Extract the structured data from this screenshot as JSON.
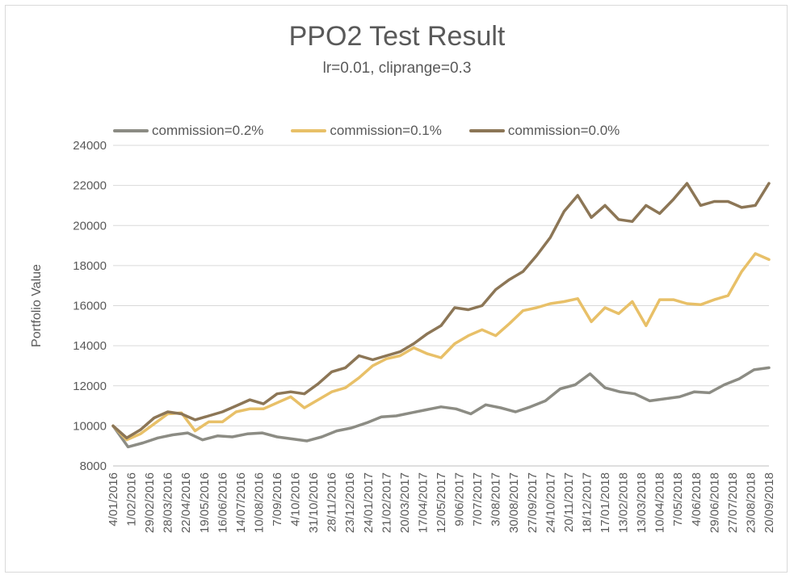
{
  "chart_data": {
    "type": "line",
    "title": "PPO2 Test Result",
    "subtitle": "lr=0.01, cliprange=0.3",
    "ylabel": "Portfolio Value",
    "xlabel": "",
    "ylim": [
      8000,
      24000
    ],
    "yticks": [
      "8000",
      "10000",
      "12000",
      "14000",
      "16000",
      "18000",
      "20000",
      "22000",
      "24000"
    ],
    "grid": true,
    "legend_position": "top",
    "x_tick_labels": [
      "4/01/2016",
      "1/02/2016",
      "29/02/2016",
      "28/03/2016",
      "22/04/2016",
      "19/05/2016",
      "16/06/2016",
      "14/07/2016",
      "10/08/2016",
      "7/09/2016",
      "4/10/2016",
      "31/10/2016",
      "28/11/2016",
      "23/12/2016",
      "24/01/2017",
      "21/02/2017",
      "20/03/2017",
      "17/04/2017",
      "12/05/2017",
      "9/06/2017",
      "7/07/2017",
      "3/08/2017",
      "30/08/2017",
      "27/09/2017",
      "24/10/2017",
      "20/11/2017",
      "18/12/2017",
      "17/01/2018",
      "13/02/2018",
      "13/03/2018",
      "10/04/2018",
      "7/05/2018",
      "4/06/2018",
      "29/06/2018",
      "27/07/2018",
      "23/08/2018",
      "20/09/2018"
    ],
    "series": [
      {
        "name": "commission=0.2%",
        "color": "#8c8c84",
        "values": [
          10000,
          8950,
          9150,
          9400,
          9550,
          9650,
          9300,
          9500,
          9450,
          9600,
          9650,
          9450,
          9350,
          9250,
          9450,
          9750,
          9900,
          10150,
          10450,
          10500,
          10650,
          10800,
          10950,
          10850,
          10600,
          11050,
          10900,
          10700,
          10950,
          11250,
          11850,
          12050,
          12600,
          11900,
          11700,
          11600,
          11250,
          11350,
          11450,
          11700,
          11650,
          12050,
          12350,
          12800,
          12900
        ]
      },
      {
        "name": "commission=0.1%",
        "color": "#e8c068",
        "values": [
          10000,
          9300,
          9600,
          10100,
          10600,
          10650,
          9750,
          10200,
          10200,
          10700,
          10850,
          10850,
          11150,
          11450,
          10900,
          11300,
          11700,
          11900,
          12400,
          13000,
          13350,
          13500,
          13900,
          13600,
          13400,
          14100,
          14500,
          14800,
          14500,
          15100,
          15750,
          15900,
          16100,
          16200,
          16350,
          15200,
          15900,
          15600,
          16200,
          15000,
          16300,
          16300,
          16100,
          16050,
          16300,
          16500,
          17700,
          18600,
          18300
        ]
      },
      {
        "name": "commission=0.0%",
        "color": "#8c7656",
        "values": [
          10000,
          9400,
          9800,
          10400,
          10700,
          10600,
          10300,
          10500,
          10700,
          11000,
          11300,
          11100,
          11600,
          11700,
          11600,
          12100,
          12700,
          12900,
          13500,
          13300,
          13500,
          13700,
          14100,
          14600,
          15000,
          15900,
          15800,
          16000,
          16800,
          17300,
          17700,
          18500,
          19400,
          20700,
          21500,
          20400,
          21000,
          20300,
          20200,
          21000,
          20600,
          21300,
          22100,
          21000,
          21200,
          21200,
          20900,
          21000,
          22100
        ]
      }
    ]
  }
}
